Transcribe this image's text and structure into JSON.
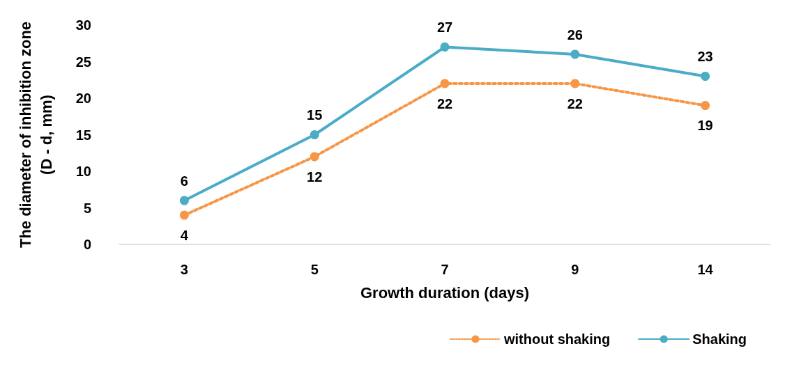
{
  "chart_data": {
    "type": "line",
    "xlabel": "Growth duration (days)",
    "ylabel": "The diameter of inhibition zone\n(D - d, mm)",
    "categories": [
      "3",
      "5",
      "7",
      "9",
      "14"
    ],
    "series": [
      {
        "name": "without shaking",
        "color": "#f79646",
        "line_style": "dotted",
        "values": [
          4,
          12,
          22,
          22,
          19
        ]
      },
      {
        "name": "Shaking",
        "color": "#4bacc6",
        "line_style": "solid",
        "values": [
          6,
          15,
          27,
          26,
          23
        ]
      }
    ],
    "ylim": [
      0,
      30
    ],
    "yticks": [
      0,
      5,
      10,
      15,
      20,
      25,
      30
    ],
    "grid": false,
    "legend": "bottom right",
    "marker": "circle",
    "data_labels": true
  }
}
